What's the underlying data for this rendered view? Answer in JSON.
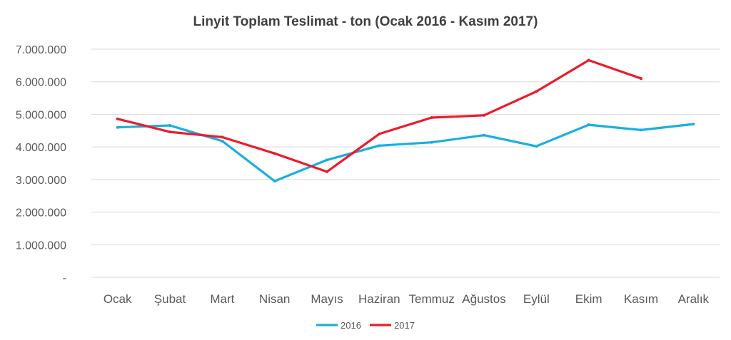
{
  "chart_data": {
    "type": "line",
    "title": "Linyit Toplam Teslimat - ton (Ocak 2016 - Kasım 2017)",
    "xlabel": "",
    "ylabel": "",
    "categories": [
      "Ocak",
      "Şubat",
      "Mart",
      "Nisan",
      "Mayıs",
      "Haziran",
      "Temmuz",
      "Ağustos",
      "Eylül",
      "Ekim",
      "Kasım",
      "Aralık"
    ],
    "ylim": [
      0,
      7000000
    ],
    "yticks": [
      0,
      1000000,
      2000000,
      3000000,
      4000000,
      5000000,
      6000000,
      7000000
    ],
    "ytick_labels": [
      "-",
      "1.000.000",
      "2.000.000",
      "3.000.000",
      "4.000.000",
      "5.000.000",
      "6.000.000",
      "7.000.000"
    ],
    "grid": true,
    "legend_position": "bottom",
    "series": [
      {
        "name": "2016",
        "color": "#1aaee0",
        "values": [
          4600000,
          4660000,
          4180000,
          2950000,
          3600000,
          4040000,
          4140000,
          4360000,
          4020000,
          4680000,
          4520000,
          4700000
        ]
      },
      {
        "name": "2017",
        "color": "#ea1c2b",
        "values": [
          4860000,
          4460000,
          4300000,
          3800000,
          3240000,
          4400000,
          4900000,
          4970000,
          5700000,
          6660000,
          6100000,
          null
        ]
      }
    ]
  }
}
